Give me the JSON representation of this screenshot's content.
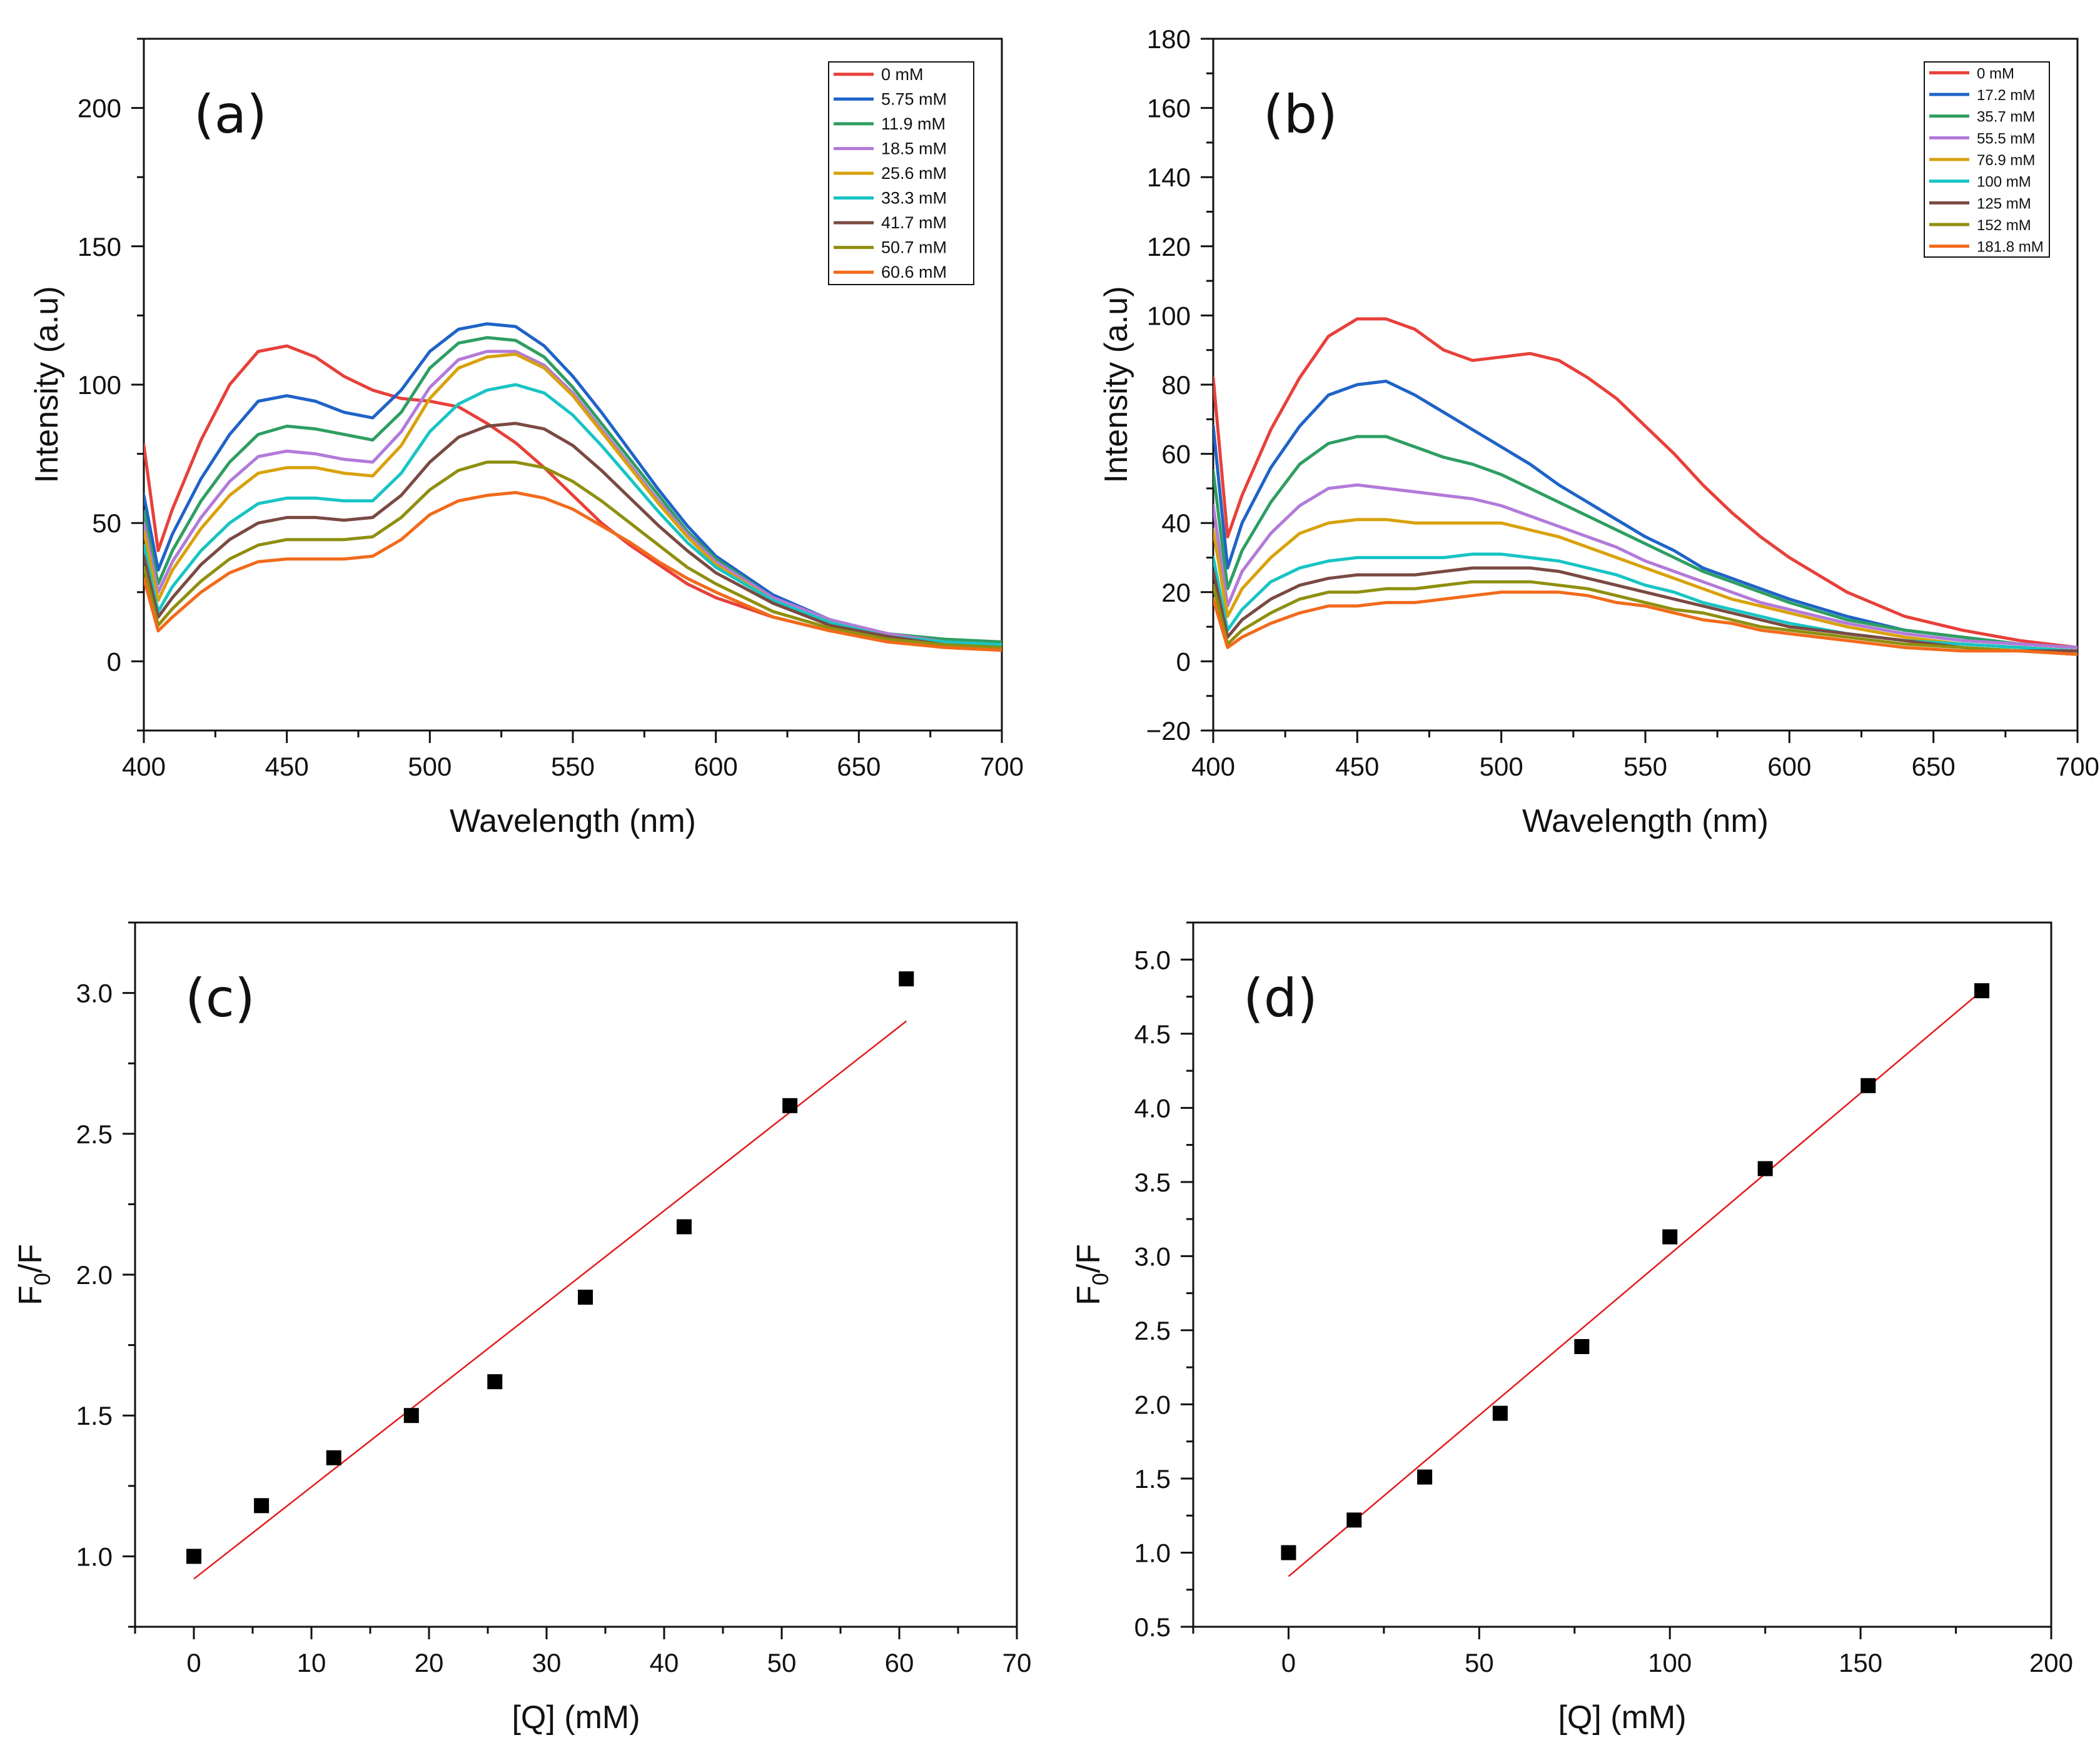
{
  "chart_data": [
    {
      "id": "a",
      "type": "line",
      "panel_label": "(a)",
      "xlabel": "Wavelength (nm)",
      "ylabel": "Intensity (a.u)",
      "xlim": [
        400,
        700
      ],
      "ylim": [
        -25,
        225
      ],
      "xticks": [
        400,
        450,
        500,
        550,
        600,
        650,
        700
      ],
      "yticks": [
        0,
        50,
        100,
        150,
        200
      ],
      "x": [
        400,
        405,
        410,
        420,
        430,
        440,
        450,
        460,
        470,
        480,
        490,
        500,
        510,
        520,
        530,
        540,
        550,
        560,
        570,
        580,
        590,
        600,
        620,
        640,
        660,
        680,
        700
      ],
      "series": [
        {
          "name": "0 mM",
          "color": "#e8403a",
          "values": [
            78,
            40,
            55,
            80,
            100,
            112,
            114,
            110,
            103,
            98,
            95,
            94,
            92,
            86,
            79,
            70,
            60,
            50,
            42,
            35,
            28,
            23,
            16,
            11,
            8,
            6,
            5
          ]
        },
        {
          "name": "5.75 mM",
          "color": "#1f63c7",
          "values": [
            60,
            33,
            46,
            66,
            82,
            94,
            96,
            94,
            90,
            88,
            98,
            112,
            120,
            122,
            121,
            114,
            103,
            90,
            76,
            62,
            49,
            38,
            24,
            15,
            10,
            7,
            6
          ]
        },
        {
          "name": "11.9 mM",
          "color": "#2e9e62",
          "values": [
            54,
            28,
            40,
            58,
            72,
            82,
            85,
            84,
            82,
            80,
            90,
            106,
            115,
            117,
            116,
            110,
            99,
            86,
            73,
            60,
            47,
            37,
            23,
            15,
            10,
            8,
            7
          ]
        },
        {
          "name": "18.5 mM",
          "color": "#b27ad9",
          "values": [
            50,
            25,
            36,
            52,
            65,
            74,
            76,
            75,
            73,
            72,
            83,
            99,
            109,
            112,
            112,
            107,
            97,
            84,
            71,
            58,
            46,
            36,
            23,
            15,
            10,
            7,
            6
          ]
        },
        {
          "name": "25.6 mM",
          "color": "#d8a20a",
          "values": [
            47,
            22,
            33,
            48,
            60,
            68,
            70,
            70,
            68,
            67,
            78,
            95,
            106,
            110,
            111,
            106,
            96,
            83,
            70,
            57,
            45,
            35,
            22,
            14,
            9,
            7,
            6
          ]
        },
        {
          "name": "33.3 mM",
          "color": "#18c4c4",
          "values": [
            42,
            18,
            27,
            40,
            50,
            57,
            59,
            59,
            58,
            58,
            68,
            83,
            93,
            98,
            100,
            97,
            89,
            78,
            66,
            54,
            43,
            34,
            22,
            14,
            9,
            7,
            6
          ]
        },
        {
          "name": "41.7 mM",
          "color": "#7a4a42",
          "values": [
            38,
            16,
            23,
            35,
            44,
            50,
            52,
            52,
            51,
            52,
            60,
            72,
            81,
            85,
            86,
            84,
            78,
            69,
            59,
            49,
            40,
            32,
            21,
            13,
            9,
            6,
            5
          ]
        },
        {
          "name": "50.7 mM",
          "color": "#8f8f10",
          "values": [
            34,
            13,
            19,
            29,
            37,
            42,
            44,
            44,
            44,
            45,
            52,
            62,
            69,
            72,
            72,
            70,
            65,
            58,
            50,
            42,
            34,
            28,
            18,
            12,
            8,
            6,
            5
          ]
        },
        {
          "name": "60.6 mM",
          "color": "#f26a1b",
          "values": [
            30,
            11,
            16,
            25,
            32,
            36,
            37,
            37,
            37,
            38,
            44,
            53,
            58,
            60,
            61,
            59,
            55,
            49,
            43,
            36,
            30,
            25,
            16,
            11,
            7,
            5,
            4
          ]
        }
      ]
    },
    {
      "id": "b",
      "type": "line",
      "panel_label": "(b)",
      "xlabel": "Wavelength (nm)",
      "ylabel": "Intensity (a.u)",
      "xlim": [
        400,
        700
      ],
      "ylim": [
        -20,
        180
      ],
      "xticks": [
        400,
        450,
        500,
        550,
        600,
        650,
        700
      ],
      "yticks": [
        -20,
        0,
        20,
        40,
        60,
        80,
        100,
        120,
        140,
        160,
        180
      ],
      "x": [
        400,
        405,
        410,
        420,
        430,
        440,
        450,
        460,
        470,
        480,
        490,
        500,
        510,
        520,
        530,
        540,
        550,
        560,
        570,
        580,
        590,
        600,
        620,
        640,
        660,
        680,
        700
      ],
      "series": [
        {
          "name": "0 mM",
          "color": "#e8403a",
          "values": [
            82,
            36,
            48,
            67,
            82,
            94,
            99,
            99,
            96,
            90,
            87,
            88,
            89,
            87,
            82,
            76,
            68,
            60,
            51,
            43,
            36,
            30,
            20,
            13,
            9,
            6,
            4
          ]
        },
        {
          "name": "17.2 mM",
          "color": "#1f63c7",
          "values": [
            68,
            27,
            40,
            56,
            68,
            77,
            80,
            81,
            77,
            72,
            67,
            62,
            57,
            51,
            46,
            41,
            36,
            32,
            27,
            24,
            21,
            18,
            13,
            9,
            7,
            5,
            4
          ]
        },
        {
          "name": "35.7 mM",
          "color": "#2e9e62",
          "values": [
            55,
            21,
            32,
            46,
            57,
            63,
            65,
            65,
            62,
            59,
            57,
            54,
            50,
            46,
            42,
            38,
            34,
            30,
            26,
            23,
            20,
            17,
            12,
            9,
            7,
            5,
            4
          ]
        },
        {
          "name": "55.5 mM",
          "color": "#b27ad9",
          "values": [
            45,
            16,
            26,
            37,
            45,
            50,
            51,
            50,
            49,
            48,
            47,
            45,
            42,
            39,
            36,
            33,
            29,
            26,
            23,
            20,
            17,
            15,
            11,
            8,
            6,
            5,
            4
          ]
        },
        {
          "name": "76.9 mM",
          "color": "#d8a20a",
          "values": [
            38,
            13,
            21,
            30,
            37,
            40,
            41,
            41,
            40,
            40,
            40,
            40,
            38,
            36,
            33,
            30,
            27,
            24,
            21,
            18,
            16,
            14,
            10,
            7,
            5,
            4,
            3
          ]
        },
        {
          "name": "100 mM",
          "color": "#18c4c4",
          "values": [
            30,
            9,
            15,
            23,
            27,
            29,
            30,
            30,
            30,
            30,
            31,
            31,
            30,
            29,
            27,
            25,
            22,
            20,
            17,
            15,
            13,
            11,
            8,
            6,
            5,
            4,
            3
          ]
        },
        {
          "name": "125 mM",
          "color": "#7a4a42",
          "values": [
            26,
            7,
            12,
            18,
            22,
            24,
            25,
            25,
            25,
            26,
            27,
            27,
            27,
            26,
            24,
            22,
            20,
            18,
            16,
            14,
            12,
            10,
            8,
            6,
            4,
            3,
            3
          ]
        },
        {
          "name": "152 mM",
          "color": "#8f8f10",
          "values": [
            22,
            5,
            9,
            14,
            18,
            20,
            20,
            21,
            21,
            22,
            23,
            23,
            23,
            22,
            21,
            19,
            17,
            15,
            14,
            12,
            10,
            9,
            7,
            5,
            4,
            3,
            2
          ]
        },
        {
          "name": "181.8 mM",
          "color": "#f26a1b",
          "values": [
            18,
            4,
            7,
            11,
            14,
            16,
            16,
            17,
            17,
            18,
            19,
            20,
            20,
            20,
            19,
            17,
            16,
            14,
            12,
            11,
            9,
            8,
            6,
            4,
            3,
            3,
            2
          ]
        }
      ]
    },
    {
      "id": "c",
      "type": "scatter",
      "panel_label": "(c)",
      "xlabel": "[Q] (mM)",
      "ylabel_main": "F",
      "ylabel_sub": "0",
      "ylabel_rest": "/F",
      "xlim": [
        -5,
        70
      ],
      "ylim": [
        0.75,
        3.25
      ],
      "xticks": [
        0,
        10,
        20,
        30,
        40,
        50,
        60,
        70
      ],
      "yticks": [
        1.0,
        1.5,
        2.0,
        2.5,
        3.0
      ],
      "points": {
        "x": [
          0,
          5.75,
          11.9,
          18.5,
          25.6,
          33.3,
          41.7,
          50.7,
          60.6
        ],
        "y": [
          1.0,
          1.18,
          1.35,
          1.5,
          1.62,
          1.92,
          2.17,
          2.6,
          3.05
        ]
      },
      "fit": {
        "x": [
          0,
          60.6
        ],
        "y": [
          0.92,
          2.9
        ],
        "color": "#e31a1c"
      }
    },
    {
      "id": "d",
      "type": "scatter",
      "panel_label": "(d)",
      "xlabel": "[Q] (mM)",
      "ylabel_main": "F",
      "ylabel_sub": "0",
      "ylabel_rest": "/F",
      "xlim": [
        -25,
        200
      ],
      "ylim": [
        0.5,
        5.25
      ],
      "xticks": [
        0,
        50,
        100,
        150,
        200
      ],
      "yticks": [
        0.5,
        1.0,
        1.5,
        2.0,
        2.5,
        3.0,
        3.5,
        4.0,
        4.5,
        5.0
      ],
      "points": {
        "x": [
          0,
          17.2,
          35.7,
          55.5,
          76.9,
          100,
          125,
          152,
          181.8
        ],
        "y": [
          1.0,
          1.22,
          1.51,
          1.94,
          2.39,
          3.13,
          3.59,
          4.15,
          4.79
        ]
      },
      "fit": {
        "x": [
          0,
          181.8
        ],
        "y": [
          0.84,
          4.79
        ],
        "color": "#e31a1c"
      }
    }
  ]
}
